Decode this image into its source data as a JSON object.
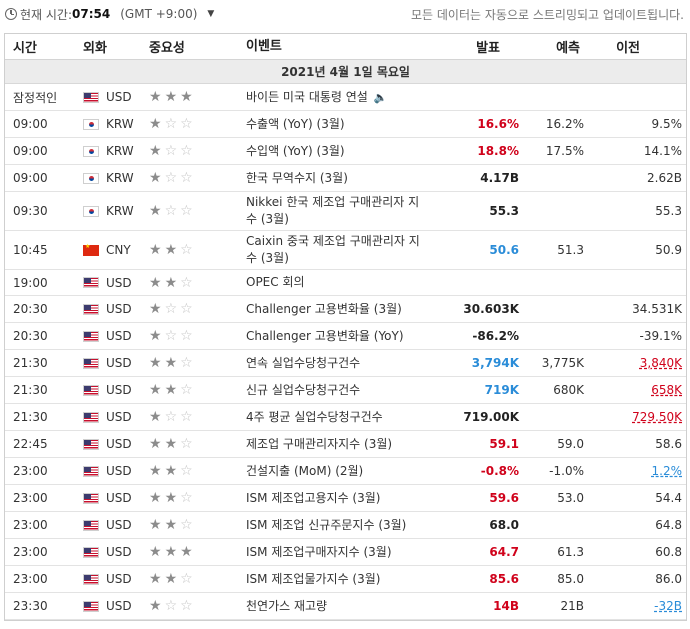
{
  "topbar": {
    "label": "현재 시간:",
    "time": "07:54",
    "gmt": "(GMT +9:00)",
    "notice": "모든 데이터는 자동으로 스트리밍되고 업데이트됩니다."
  },
  "columns": {
    "time": "시간",
    "currency": "외화",
    "importance": "중요성",
    "event": "이벤트",
    "actual": "발표",
    "forecast": "예측",
    "previous": "이전"
  },
  "date_label": "2021년 4월 1일 목요일",
  "events": [
    {
      "time": "잠정적인",
      "currency": "USD",
      "flag": "us",
      "stars": 3,
      "event": "바이든 미국 대통령 연설",
      "speech": true,
      "actual": "",
      "actual_color": "dark",
      "forecast": "",
      "previous": "",
      "previous_style": "",
      "height": 27
    },
    {
      "time": "09:00",
      "currency": "KRW",
      "flag": "kr",
      "stars": 1,
      "event": "수출액 (YoY) (3월)",
      "actual": "16.6%",
      "actual_color": "red",
      "forecast": "16.2%",
      "previous": "9.5%",
      "previous_style": "",
      "height": 27
    },
    {
      "time": "09:00",
      "currency": "KRW",
      "flag": "kr",
      "stars": 1,
      "event": "수입액 (YoY) (3월)",
      "actual": "18.8%",
      "actual_color": "red",
      "forecast": "17.5%",
      "previous": "14.1%",
      "previous_style": "",
      "height": 27
    },
    {
      "time": "09:00",
      "currency": "KRW",
      "flag": "kr",
      "stars": 1,
      "event": "한국 무역수지 (3월)",
      "actual": "4.17B",
      "actual_color": "dark",
      "forecast": "",
      "previous": "2.62B",
      "previous_style": "",
      "height": 27
    },
    {
      "time": "09:30",
      "currency": "KRW",
      "flag": "kr",
      "stars": 1,
      "event": "Nikkei 한국 제조업 구매관리자 지수 (3월)",
      "actual": "55.3",
      "actual_color": "dark",
      "forecast": "",
      "previous": "55.3",
      "previous_style": "",
      "height": 39
    },
    {
      "time": "10:45",
      "currency": "CNY",
      "flag": "cn",
      "stars": 2,
      "event": "Caixin 중국 제조업 구매관리자 지수 (3월)",
      "actual": "50.6",
      "actual_color": "blue",
      "forecast": "51.3",
      "previous": "50.9",
      "previous_style": "",
      "height": 39
    },
    {
      "time": "19:00",
      "currency": "USD",
      "flag": "us",
      "stars": 2,
      "event": "OPEC 회의",
      "actual": "",
      "actual_color": "dark",
      "forecast": "",
      "previous": "",
      "previous_style": "",
      "height": 26
    },
    {
      "time": "20:30",
      "currency": "USD",
      "flag": "us",
      "stars": 1,
      "event": "Challenger 고용변화율 (3월)",
      "actual": "30.603K",
      "actual_color": "dark",
      "forecast": "",
      "previous": "34.531K",
      "previous_style": "",
      "height": 27
    },
    {
      "time": "20:30",
      "currency": "USD",
      "flag": "us",
      "stars": 1,
      "event": "Challenger 고용변화율 (YoY)",
      "actual": "-86.2%",
      "actual_color": "dark",
      "forecast": "",
      "previous": "-39.1%",
      "previous_style": "",
      "height": 27
    },
    {
      "time": "21:30",
      "currency": "USD",
      "flag": "us",
      "stars": 2,
      "event": "연속 실업수당청구건수",
      "actual": "3,794K",
      "actual_color": "blue",
      "forecast": "3,775K",
      "previous": "3,840K",
      "previous_style": "ul-red",
      "height": 27
    },
    {
      "time": "21:30",
      "currency": "USD",
      "flag": "us",
      "stars": 2,
      "event": "신규 실업수당청구건수",
      "actual": "719K",
      "actual_color": "blue",
      "forecast": "680K",
      "previous": "658K",
      "previous_style": "ul-red",
      "height": 27
    },
    {
      "time": "21:30",
      "currency": "USD",
      "flag": "us",
      "stars": 1,
      "event": "4주 평균 실업수당청구건수",
      "actual": "719.00K",
      "actual_color": "dark",
      "forecast": "",
      "previous": "729.50K",
      "previous_style": "ul-red",
      "height": 27
    },
    {
      "time": "22:45",
      "currency": "USD",
      "flag": "us",
      "stars": 2,
      "event": "제조업 구매관리자지수 (3월)",
      "actual": "59.1",
      "actual_color": "red",
      "forecast": "59.0",
      "previous": "58.6",
      "previous_style": "",
      "height": 27
    },
    {
      "time": "23:00",
      "currency": "USD",
      "flag": "us",
      "stars": 2,
      "event": "건설지출 (MoM) (2월)",
      "actual": "-0.8%",
      "actual_color": "red",
      "forecast": "-1.0%",
      "previous": "1.2%",
      "previous_style": "ul-blue",
      "height": 27
    },
    {
      "time": "23:00",
      "currency": "USD",
      "flag": "us",
      "stars": 2,
      "event": "ISM 제조업고용지수 (3월)",
      "actual": "59.6",
      "actual_color": "red",
      "forecast": "53.0",
      "previous": "54.4",
      "previous_style": "",
      "height": 27
    },
    {
      "time": "23:00",
      "currency": "USD",
      "flag": "us",
      "stars": 2,
      "event": "ISM 제조업 신규주문지수 (3월)",
      "actual": "68.0",
      "actual_color": "dark",
      "forecast": "",
      "previous": "64.8",
      "previous_style": "",
      "height": 27
    },
    {
      "time": "23:00",
      "currency": "USD",
      "flag": "us",
      "stars": 3,
      "event": "ISM 제조업구매자지수 (3월)",
      "actual": "64.7",
      "actual_color": "red",
      "forecast": "61.3",
      "previous": "60.8",
      "previous_style": "",
      "height": 27
    },
    {
      "time": "23:00",
      "currency": "USD",
      "flag": "us",
      "stars": 2,
      "event": "ISM 제조업물가지수 (3월)",
      "actual": "85.6",
      "actual_color": "red",
      "forecast": "85.0",
      "previous": "86.0",
      "previous_style": "",
      "height": 27
    },
    {
      "time": "23:30",
      "currency": "USD",
      "flag": "us",
      "stars": 1,
      "event": "천연가스 재고량",
      "actual": "14B",
      "actual_color": "red",
      "forecast": "21B",
      "previous": "-32B",
      "previous_style": "ul-blue",
      "height": 27
    }
  ]
}
